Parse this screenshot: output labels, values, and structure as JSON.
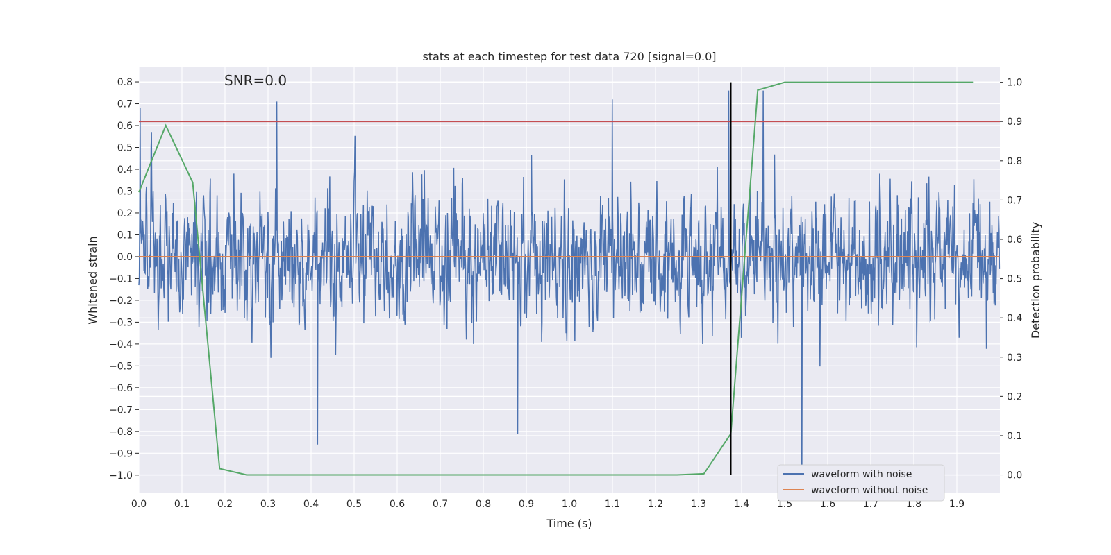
{
  "chart_data": {
    "type": "line",
    "title": "stats at each timestep for test data 720 [signal=0.0]",
    "xlabel": "Time (s)",
    "ylabel": "Whitened strain",
    "y2label": "Detection probability",
    "annotation": "SNR=0.0",
    "xlim": [
      0.0,
      2.0
    ],
    "ylim": [
      -1.08,
      0.87
    ],
    "y2lim": [
      -0.045,
      1.04
    ],
    "xticks": [
      0.0,
      0.1,
      0.2,
      0.3,
      0.4,
      0.5,
      0.6,
      0.7,
      0.8,
      0.9,
      1.0,
      1.1,
      1.2,
      1.3,
      1.4,
      1.5,
      1.6,
      1.7,
      1.8,
      1.9
    ],
    "xtick_labels": [
      "0.0",
      "0.1",
      "0.2",
      "0.3",
      "0.4",
      "0.5",
      "0.6",
      "0.7",
      "0.8",
      "0.9",
      "1.0",
      "1.1",
      "1.2",
      "1.3",
      "1.4",
      "1.5",
      "1.6",
      "1.7",
      "1.8",
      "1.9"
    ],
    "yticks": [
      0.8,
      0.7,
      0.6,
      0.5,
      0.4,
      0.3,
      0.2,
      0.1,
      0.0,
      -0.1,
      -0.2,
      -0.3,
      -0.4,
      -0.5,
      -0.6,
      -0.7,
      -0.8,
      -0.9,
      -1.0
    ],
    "ytick_labels": [
      "0.8",
      "0.7",
      "0.6",
      "0.5",
      "0.4",
      "0.3",
      "0.2",
      "0.1",
      "0.0",
      "−0.1",
      "−0.2",
      "−0.3",
      "−0.4",
      "−0.5",
      "−0.6",
      "−0.7",
      "−0.8",
      "−0.9",
      "−1.0"
    ],
    "y2ticks": [
      1.0,
      0.9,
      0.8,
      0.7,
      0.6,
      0.5,
      0.4,
      0.3,
      0.2,
      0.1,
      0.0
    ],
    "y2tick_labels": [
      "1.0",
      "0.9",
      "0.8",
      "0.7",
      "0.6",
      "0.5",
      "0.4",
      "0.3",
      "0.2",
      "0.1",
      "0.0"
    ],
    "series": [
      {
        "name": "waveform with noise",
        "color": "#4c72b0",
        "axis": "left",
        "kind": "noise",
        "n_points": 2048,
        "mean": 0.0,
        "std": 0.24,
        "seed": 720,
        "x_start": 0.0,
        "x_end": 1.999,
        "peaks": [
          [
            0.003,
            0.68
          ],
          [
            0.32,
            0.71
          ],
          [
            1.1,
            0.72
          ],
          [
            1.37,
            0.76
          ],
          [
            1.45,
            0.76
          ],
          [
            0.415,
            -0.86
          ],
          [
            0.88,
            -0.81
          ],
          [
            1.54,
            -1.05
          ]
        ]
      },
      {
        "name": "waveform without noise",
        "color": "#dd8452",
        "axis": "left",
        "x": [
          0.0,
          1.999
        ],
        "values": [
          0.0,
          0.0
        ]
      },
      {
        "name": "detection probability",
        "color": "#55a868",
        "axis": "right",
        "x": [
          0.0,
          0.0625,
          0.125,
          0.1875,
          0.25,
          0.3125,
          0.375,
          0.4375,
          0.5,
          0.5625,
          0.625,
          0.6875,
          0.75,
          0.8125,
          0.875,
          0.9375,
          1.0,
          1.0625,
          1.125,
          1.1875,
          1.25,
          1.3125,
          1.375,
          1.4375,
          1.5,
          1.5625,
          1.625,
          1.6875,
          1.75,
          1.8125,
          1.875,
          1.9375
        ],
        "values": [
          0.72,
          0.89,
          0.745,
          0.016,
          0.0,
          0.0,
          0.0,
          0.0,
          0.0,
          0.0,
          0.0,
          0.0,
          0.0,
          0.0,
          0.0,
          0.0,
          0.0,
          0.0,
          0.0,
          0.0,
          0.0,
          0.003,
          0.105,
          0.98,
          1.0,
          1.0,
          1.0,
          1.0,
          1.0,
          1.0,
          1.0,
          1.0
        ]
      }
    ],
    "threshold": {
      "value": 0.9,
      "axis": "right",
      "color": "#c44e52"
    },
    "marker_line": {
      "x": 1.375,
      "color": "#000000"
    },
    "legend": {
      "position": "bottom-right",
      "entries": [
        {
          "label": "waveform with noise",
          "color": "#4c72b0"
        },
        {
          "label": "waveform without noise",
          "color": "#dd8452"
        }
      ]
    },
    "grid": true
  },
  "style": {
    "plot_bg": "#eaeaf2",
    "grid_color": "#ffffff",
    "text_color": "#262626"
  }
}
